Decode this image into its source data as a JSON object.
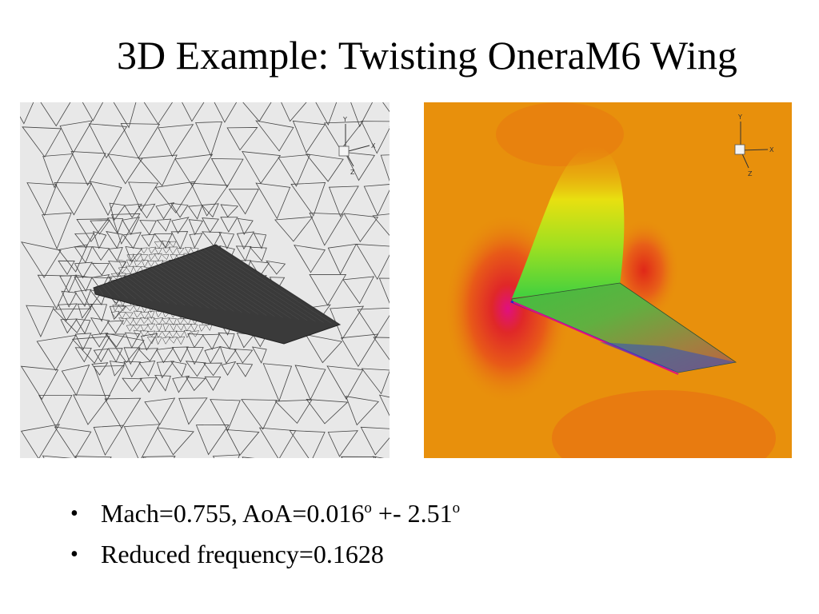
{
  "slide": {
    "title": "3D Example: Twisting OneraM6 Wing"
  },
  "figures": {
    "mesh": {
      "axis_labels": {
        "x": "X",
        "y": "Y",
        "z": "Z"
      }
    },
    "contour": {
      "axis_labels": {
        "x": "X",
        "y": "Y",
        "z": "Z"
      },
      "colors": {
        "background": "#e8900c",
        "red": "#e04018",
        "yellow": "#e8e010",
        "green": "#40d040",
        "blue": "#2020d0",
        "magenta": "#e01080"
      }
    }
  },
  "bullets": [
    {
      "main": "Mach=0.755, AoA=0.016",
      "sup1": "o",
      "mid": " +- 2.51",
      "sup2": "o"
    },
    {
      "main": "Reduced frequency=0.1628"
    }
  ]
}
